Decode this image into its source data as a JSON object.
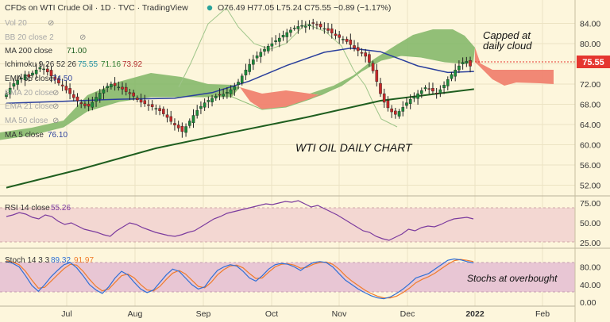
{
  "header": {
    "title": "CFDs on WTI Crude Oil · 1D · TVC · TradingView",
    "ohlc": "O76.49 H77.05 L75.24 C75.55 −0.89 (−1.17%)"
  },
  "indicators": {
    "vol": "Vol 20",
    "bb": "BB 20 close 2",
    "ma200": "MA 200 close",
    "ma200_val": "71.00",
    "ichimoku": "Ichimoku 9 26 52 26",
    "ichimoku_v1": "75.55",
    "ichimoku_v2": "71.16",
    "ichimoku_v3": "73.92",
    "ema55": "EMA 55 close",
    "ema55_val": "74.50",
    "ema20": "EMA 20 close",
    "ema21": "EMA 21 close",
    "ma50": "MA 50 close",
    "ma5": "MA 5 close",
    "ma5_val": "76.10",
    "rsi": "RSI 14 close",
    "rsi_val": "55.26",
    "stoch": "Stoch 14 3 3",
    "stoch_k": "89.32",
    "stoch_d": "91.97"
  },
  "annotations": {
    "capped_line1": "Capped at",
    "capped_line2": "daily cloud",
    "chart_label": "WTI OIL DAILY CHART",
    "stoch_note": "Stochs at overbought"
  },
  "price_tag": "75.55",
  "colors": {
    "background": "#fdf6dc",
    "cloud_bull": "#7fb565",
    "cloud_bear": "#f0826f",
    "ma200": "#1f5e1f",
    "ema55": "#2a3f9c",
    "price_tag": "#e5362f",
    "rsi_band": "#f3d7d2",
    "stoch_band": "#e8c6d4",
    "stoch_k": "#2f6fd6",
    "stoch_d": "#f07b2a"
  },
  "chart_data": {
    "type": "candlestick",
    "title": "WTI OIL DAILY CHART",
    "price_axis": {
      "ticks": [
        52.0,
        56.0,
        60.0,
        64.0,
        68.0,
        72.0,
        76.0,
        80.0,
        84.0
      ],
      "range": [
        50.5,
        85.5
      ]
    },
    "rsi_axis": {
      "ticks": [
        25.0,
        50.0,
        75.0
      ],
      "range": [
        20,
        80
      ],
      "band": [
        30,
        70
      ]
    },
    "stoch_axis": {
      "ticks": [
        "0.00",
        "40.00",
        "80.00"
      ],
      "range": [
        -5,
        115
      ],
      "band": [
        20,
        80
      ]
    },
    "time_axis": [
      "Jul",
      "Aug",
      "Sep",
      "Oct",
      "Nov",
      "Dec",
      "2022",
      "Feb"
    ],
    "last_close": 75.55,
    "candles_close": [
      70.1,
      71.2,
      72.1,
      72.8,
      73.2,
      73.9,
      73.4,
      74.2,
      74.8,
      75.3,
      75.0,
      74.4,
      73.6,
      72.9,
      72.2,
      71.6,
      70.8,
      70.1,
      69.3,
      68.7,
      68.1,
      67.7,
      67.6,
      68.4,
      69.4,
      70.2,
      70.9,
      71.6,
      72.0,
      71.7,
      71.4,
      71.0,
      70.5,
      70.1,
      69.6,
      68.9,
      68.4,
      68.1,
      67.8,
      67.5,
      67.2,
      66.7,
      66.1,
      65.4,
      64.6,
      63.9,
      63.3,
      62.6,
      63.6,
      64.7,
      65.8,
      66.8,
      67.6,
      68.3,
      68.8,
      69.2,
      69.6,
      69.8,
      70.0,
      70.4,
      70.9,
      71.5,
      72.4,
      73.6,
      74.8,
      75.9,
      76.8,
      77.6,
      78.3,
      78.9,
      79.5,
      80.0,
      80.6,
      81.1,
      81.7,
      82.2,
      82.7,
      83.1,
      83.4,
      83.6,
      83.5,
      83.8,
      84.0,
      83.7,
      83.3,
      83.0,
      82.6,
      82.1,
      81.6,
      81.2,
      80.9,
      80.4,
      79.8,
      79.1,
      78.6,
      78.2,
      77.5,
      76.3,
      74.6,
      72.5,
      70.1,
      68.4,
      67.3,
      66.5,
      66.0,
      66.6,
      67.4,
      68.3,
      69.0,
      69.5,
      70.1,
      70.7,
      71.3,
      71.0,
      70.6,
      70.2,
      70.9,
      71.8,
      72.9,
      73.9,
      74.8,
      75.6,
      76.3,
      76.5,
      75.55
    ],
    "series": [
      {
        "name": "MA 200 close",
        "x": [
          0,
          20,
          40,
          60,
          80,
          100,
          125
        ],
        "values": [
          51.5,
          55.2,
          59.3,
          62.4,
          65.4,
          68.7,
          71.0
        ]
      },
      {
        "name": "EMA 55 close",
        "x": [
          0,
          15,
          30,
          45,
          55,
          65,
          75,
          85,
          92,
          100,
          110,
          118,
          125
        ],
        "values": [
          68.2,
          68.6,
          69.0,
          69.2,
          70.3,
          72.6,
          75.7,
          78.3,
          79.1,
          78.4,
          75.6,
          74.3,
          74.5
        ]
      },
      {
        "name": "RSI 14",
        "values": [
          58,
          60,
          63,
          61,
          57,
          55,
          60,
          58,
          52,
          48,
          50,
          46,
          42,
          40,
          38,
          35,
          33,
          40,
          45,
          50,
          48,
          44,
          41,
          38,
          36,
          34,
          33,
          35,
          38,
          40,
          45,
          50,
          55,
          58,
          62,
          64,
          66,
          68,
          70,
          72,
          74,
          73,
          75,
          77,
          76,
          78,
          74,
          70,
          72,
          68,
          64,
          60,
          55,
          50,
          45,
          40,
          38,
          33,
          30,
          28,
          32,
          36,
          42,
          40,
          44,
          46,
          45,
          48,
          52,
          55,
          56,
          57,
          55
        ]
      },
      {
        "name": "Stoch %K",
        "values": [
          92,
          88,
          80,
          60,
          38,
          25,
          40,
          58,
          72,
          85,
          90,
          78,
          60,
          40,
          28,
          20,
          35,
          55,
          70,
          62,
          45,
          30,
          22,
          28,
          45,
          62,
          75,
          70,
          55,
          40,
          30,
          35,
          55,
          72,
          80,
          85,
          82,
          70,
          55,
          48,
          60,
          75,
          85,
          88,
          86,
          80,
          72,
          82,
          90,
          92,
          90,
          80,
          65,
          50,
          40,
          30,
          22,
          15,
          10,
          8,
          12,
          20,
          30,
          42,
          55,
          60,
          65,
          75,
          85,
          95,
          98,
          96,
          92,
          89
        ]
      },
      {
        "name": "Stoch %D",
        "values": [
          94,
          91,
          85,
          70,
          50,
          32,
          34,
          48,
          62,
          76,
          86,
          84,
          70,
          52,
          36,
          26,
          30,
          45,
          60,
          64,
          55,
          40,
          28,
          26,
          36,
          52,
          66,
          72,
          64,
          50,
          36,
          33,
          45,
          62,
          74,
          82,
          84,
          78,
          65,
          54,
          55,
          68,
          80,
          86,
          87,
          84,
          77,
          79,
          86,
          90,
          91,
          86,
          75,
          60,
          48,
          38,
          28,
          20,
          14,
          10,
          10,
          14,
          22,
          32,
          44,
          52,
          58,
          66,
          76,
          86,
          94,
          97,
          95,
          92
        ]
      }
    ]
  }
}
